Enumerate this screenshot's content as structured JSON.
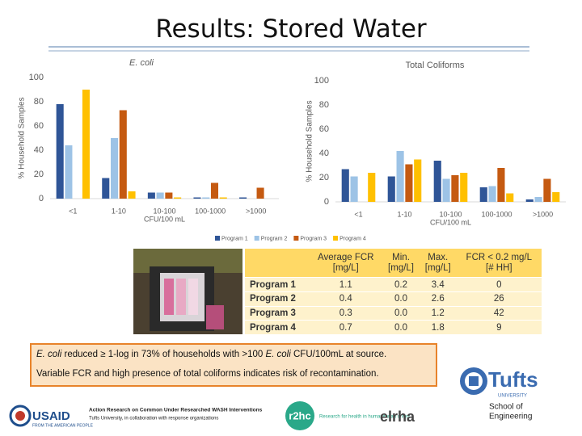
{
  "title": "Results: Stored Water",
  "chart_data": [
    {
      "type": "bar",
      "title": "E. coli",
      "x_label": "CFU/100 mL",
      "y_label": "% Household Samples",
      "categories": [
        "<1",
        "1-10",
        "10-100",
        "100-1000",
        ">1000"
      ],
      "series": [
        {
          "name": "Program 1",
          "color": "#2f5597",
          "values": [
            78,
            17,
            5,
            1,
            1
          ]
        },
        {
          "name": "Program 2",
          "color": "#9dc3e6",
          "values": [
            44,
            50,
            5,
            1,
            0
          ]
        },
        {
          "name": "Program 3",
          "color": "#c55a11",
          "values": [
            0,
            73,
            5,
            13,
            9
          ]
        },
        {
          "name": "Program 4",
          "color": "#ffc000",
          "values": [
            90,
            6,
            1,
            1,
            0
          ]
        }
      ],
      "ylim": [
        0,
        100
      ],
      "yticks": [
        0,
        20,
        40,
        60,
        80,
        100
      ],
      "grid": false
    },
    {
      "type": "bar",
      "title": "Total Coliforms",
      "x_label": "CFU/100 mL",
      "y_label": "% Household Samples",
      "categories": [
        "<1",
        "1-10",
        "10-100",
        "100-1000",
        ">1000"
      ],
      "series": [
        {
          "color": "#2f5597",
          "values": [
            27,
            21,
            34,
            12,
            2
          ]
        },
        {
          "color": "#9dc3e6",
          "values": [
            21,
            42,
            19,
            13,
            4
          ]
        },
        {
          "color": "#c55a11",
          "values": [
            0,
            31,
            22,
            28,
            19
          ]
        },
        {
          "color": "#ffc000",
          "values": [
            24,
            35,
            24,
            7,
            8
          ]
        }
      ],
      "ylim": [
        0,
        100
      ],
      "yticks": [
        0,
        20,
        40,
        60,
        80,
        100
      ],
      "grid": false
    }
  ],
  "table": {
    "header": [
      "Average FCR\n[mg/L]",
      "Min.\n[mg/L]",
      "Max.\n[mg/L]",
      "FCR < 0.2 mg/L\n[# HH]"
    ],
    "rows": [
      [
        "Program 1",
        "1.1",
        "0.2",
        "3.4",
        "0"
      ],
      [
        "Program 2",
        "0.4",
        "0.0",
        "2.6",
        "26"
      ],
      [
        "Program 3",
        "0.3",
        "0.0",
        "1.2",
        "42"
      ],
      [
        "Program 4",
        "0.7",
        "0.0",
        "1.8",
        "9"
      ]
    ]
  },
  "notes": [
    [
      {
        "text": "E. coli",
        "italic": true
      },
      {
        "text": " reduced ≥ 1-log in 73% of households with >100 "
      },
      {
        "text": "E. coli",
        "italic": true
      },
      {
        "text": " CFU/100mL at source."
      }
    ],
    [
      {
        "text": "Variable FCR and high presence of total coliforms indicates risk of recontamination."
      }
    ]
  ],
  "footer": {
    "usaid": "USAID",
    "usaid_tagline": "FROM THE AMERICAN PEOPLE",
    "program": "Action Research on Common Under Researched WASH Interventions",
    "program_sub": "Tufts University, in collaboration with response organizations",
    "r2hc": "r2hc",
    "r2hc_tagline": "Research for health in humanitarian crises",
    "elrha": "elrha",
    "tufts": "Tufts",
    "tufts_sub": "UNIVERSITY",
    "school": "School of",
    "engineering": "Engineering"
  }
}
